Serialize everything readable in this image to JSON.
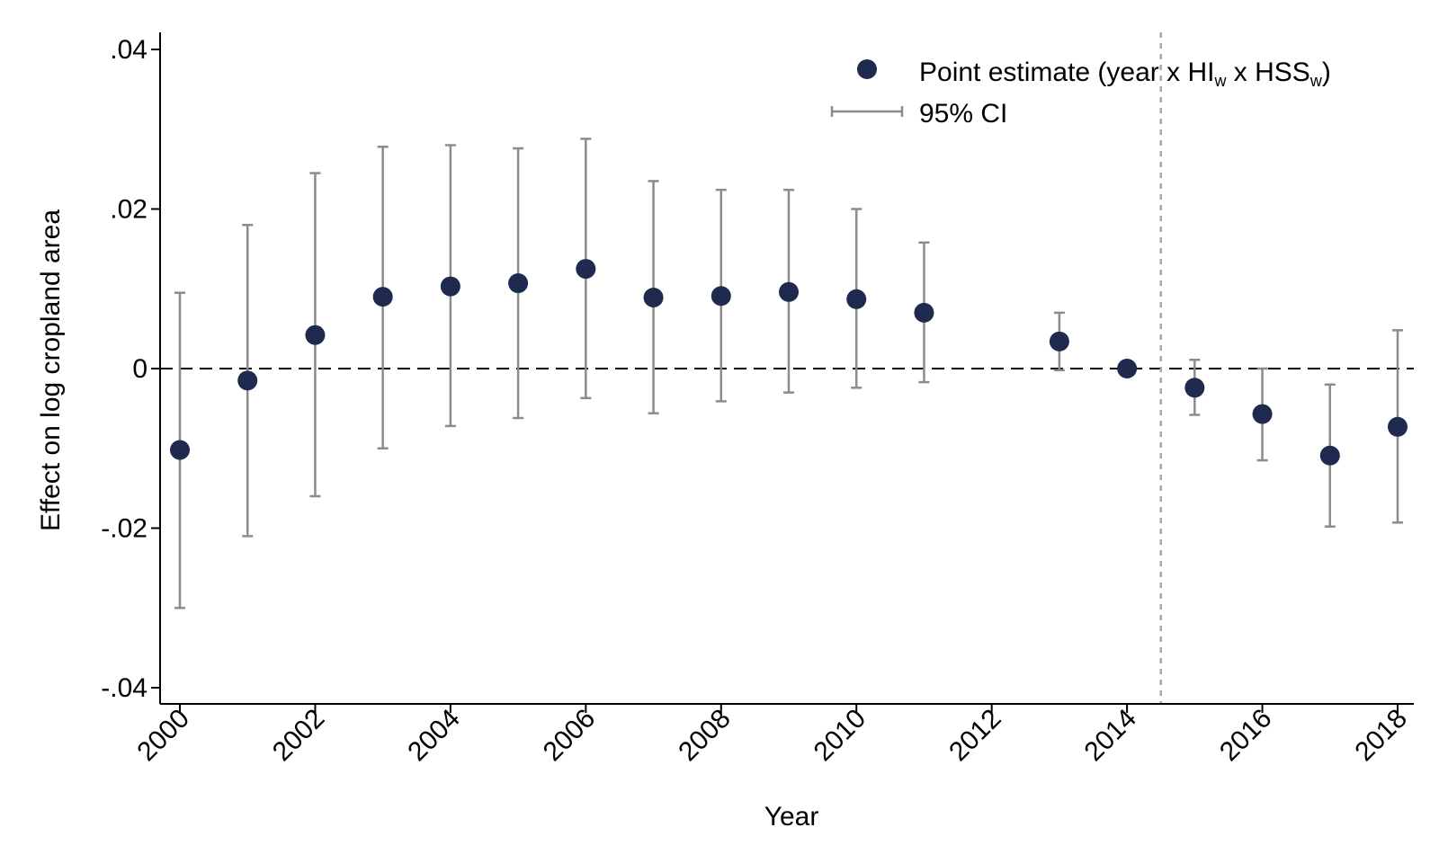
{
  "chart_data": {
    "type": "scatter",
    "xlabel": "Year",
    "ylabel": "Effect on log cropland area",
    "xlim": [
      2000,
      2018
    ],
    "ylim": [
      -0.04,
      0.04
    ],
    "xticks": [
      2000,
      2002,
      2004,
      2006,
      2008,
      2010,
      2012,
      2014,
      2016,
      2018
    ],
    "yticks": [
      -0.04,
      -0.02,
      0,
      0.02,
      0.04
    ],
    "ytick_labels": [
      "-.04",
      "-.02",
      "0",
      ".02",
      ".04"
    ],
    "reference_line_y": 0,
    "event_line_x": 2014.5,
    "legend": {
      "placement": "top-right",
      "point_label": "Point estimate (year x HI",
      "point_sub1": "w",
      "point_mid": " x HSS",
      "point_sub2": "w",
      "point_end": ")",
      "ci_label": "95% CI"
    },
    "series": [
      {
        "type": "point_estimates_with_ci",
        "x": [
          2000,
          2001,
          2002,
          2003,
          2004,
          2005,
          2006,
          2007,
          2008,
          2009,
          2010,
          2011,
          2013,
          2014,
          2015,
          2016,
          2017,
          2018
        ],
        "y": [
          -0.0102,
          -0.0015,
          0.0042,
          0.009,
          0.0103,
          0.0107,
          0.0125,
          0.0089,
          0.0091,
          0.0096,
          0.0087,
          0.007,
          0.0034,
          0.0,
          -0.0024,
          -0.0057,
          -0.0109,
          -0.0073
        ],
        "lower": [
          -0.03,
          -0.021,
          -0.016,
          -0.01,
          -0.0072,
          -0.0062,
          -0.0037,
          -0.0056,
          -0.0041,
          -0.003,
          -0.0024,
          -0.0017,
          -0.0002,
          0.0,
          -0.0058,
          -0.0115,
          -0.0198,
          -0.0193
        ],
        "upper": [
          0.0095,
          0.018,
          0.0245,
          0.0278,
          0.028,
          0.0276,
          0.0288,
          0.0235,
          0.0224,
          0.0224,
          0.02,
          0.0158,
          0.007,
          0.0,
          0.0011,
          0.0,
          -0.002,
          0.0048
        ]
      }
    ],
    "colors": {
      "point": "#1f2a4f",
      "ci": "#8c8c8c",
      "axis": "#000000",
      "event_line": "#a8a8a8"
    }
  }
}
